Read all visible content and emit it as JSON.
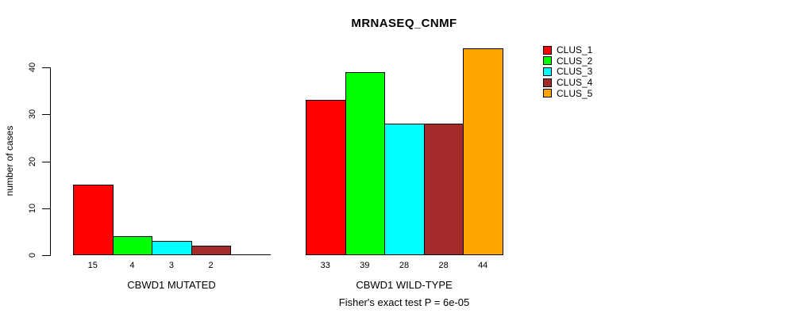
{
  "chart_data": {
    "type": "bar",
    "title": "MRNASEQ_CNMF",
    "ylabel": "number of cases",
    "xlabel": "",
    "ylim": [
      0,
      40
    ],
    "y_ticks": [
      0,
      10,
      20,
      30,
      40
    ],
    "grid": false,
    "legend_position": "top-right",
    "series_names": [
      "CLUS_1",
      "CLUS_2",
      "CLUS_3",
      "CLUS_4",
      "CLUS_5"
    ],
    "colors": [
      "#FF0000",
      "#00FF00",
      "#00FFFF",
      "#A52A2A",
      "#FFA500"
    ],
    "legend": {
      "entries": [
        {
          "label": "CLUS_1",
          "color": "#FF0000"
        },
        {
          "label": "CLUS_2",
          "color": "#00FF00"
        },
        {
          "label": "CLUS_3",
          "color": "#00FFFF"
        },
        {
          "label": "CLUS_4",
          "color": "#A52A2A"
        },
        {
          "label": "CLUS_5",
          "color": "#FFA500"
        }
      ]
    },
    "groups": [
      {
        "label": "CBWD1 MUTATED",
        "values": [
          15,
          4,
          3,
          2,
          0
        ],
        "bar_labels": [
          "15",
          "4",
          "3",
          "2",
          ""
        ]
      },
      {
        "label": "CBWD1 WILD-TYPE",
        "values": [
          33,
          39,
          28,
          28,
          44
        ],
        "bar_labels": [
          "33",
          "39",
          "28",
          "28",
          "44"
        ]
      }
    ],
    "footnote": "Fisher's exact test P = 6e-05"
  }
}
